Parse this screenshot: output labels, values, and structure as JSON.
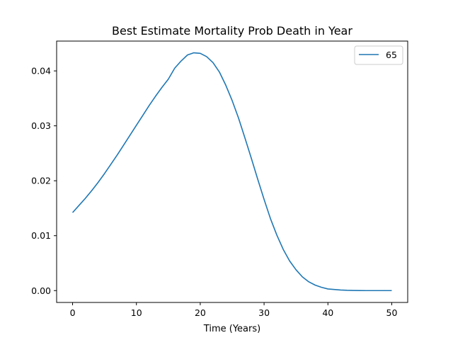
{
  "chart_data": {
    "type": "line",
    "title": "Best Estimate Mortality Prob Death in Year",
    "xlabel": "Time (Years)",
    "ylabel": "",
    "xlim": [
      -2.5,
      52.5
    ],
    "ylim": [
      -0.00216,
      0.04543
    ],
    "xticks": [
      0,
      10,
      20,
      30,
      40,
      50
    ],
    "xtick_labels": [
      "0",
      "10",
      "20",
      "30",
      "40",
      "50"
    ],
    "yticks": [
      0.0,
      0.01,
      0.02,
      0.03,
      0.04
    ],
    "ytick_labels": [
      "0.00",
      "0.01",
      "0.02",
      "0.03",
      "0.04"
    ],
    "grid": false,
    "legend_position": "top-right",
    "series": [
      {
        "name": "65",
        "color": "#1f77b4",
        "x": [
          0,
          1,
          2,
          3,
          4,
          5,
          6,
          7,
          8,
          9,
          10,
          11,
          12,
          13,
          14,
          15,
          16,
          17,
          18,
          19,
          20,
          21,
          22,
          23,
          24,
          25,
          26,
          27,
          28,
          29,
          30,
          31,
          32,
          33,
          34,
          35,
          36,
          37,
          38,
          39,
          40,
          41,
          42,
          43,
          44,
          45,
          46,
          47,
          48,
          49,
          50
        ],
        "y": [
          0.0142,
          0.0155,
          0.0168,
          0.0182,
          0.0197,
          0.0213,
          0.023,
          0.0247,
          0.0265,
          0.0283,
          0.0301,
          0.0319,
          0.0337,
          0.0354,
          0.037,
          0.0385,
          0.0405,
          0.0418,
          0.0429,
          0.0433,
          0.0432,
          0.0426,
          0.0415,
          0.0398,
          0.0374,
          0.0346,
          0.0314,
          0.0278,
          0.0241,
          0.0203,
          0.0166,
          0.0131,
          0.0101,
          0.0075,
          0.0054,
          0.0038,
          0.0025,
          0.0016,
          0.001,
          0.0006,
          0.0003,
          0.0002,
          0.0001,
          5e-05,
          3e-05,
          1e-05,
          0.0,
          0.0,
          0.0,
          0.0,
          0.0
        ]
      }
    ]
  }
}
